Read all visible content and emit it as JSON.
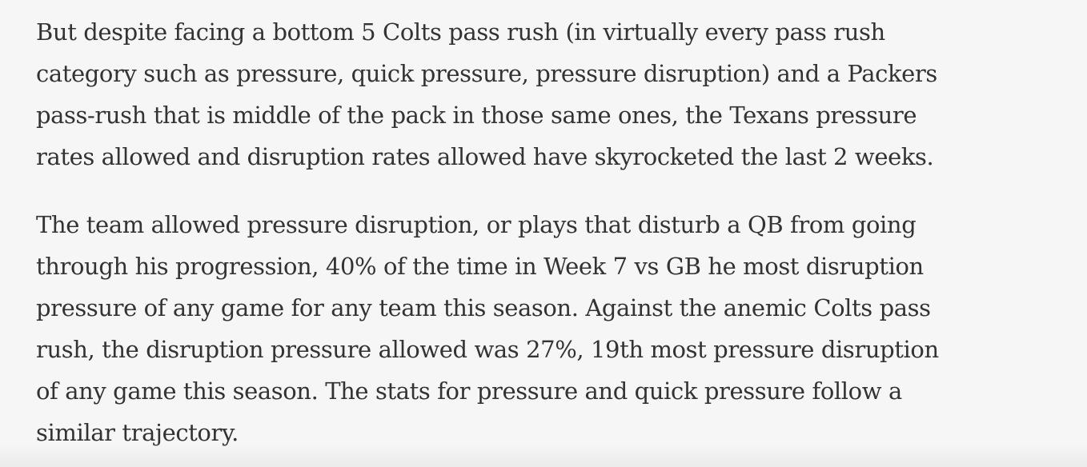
{
  "article": {
    "paragraphs": [
      {
        "lines": [
          "But despite facing a bottom 5 Colts pass rush (in virtually every pass rush",
          "category such as pressure, quick pressure, pressure disruption) and a Packers",
          "pass-rush that is middle of the pack in those same ones, the Texans pressure",
          "rates allowed and disruption rates allowed have skyrocketed the last 2 weeks."
        ]
      },
      {
        "lines": [
          "The team allowed pressure disruption, or plays that disturb a QB from going",
          "through his progression, 40% of the time in Week 7 vs GB he most disruption",
          "pressure of any game for any team this season. Against the anemic Colts pass",
          "rush, the disruption pressure allowed was 27%, 19th most pressure disruption",
          "of any game this season. The stats for pressure and quick pressure follow a",
          "similar trajectory."
        ]
      }
    ]
  }
}
